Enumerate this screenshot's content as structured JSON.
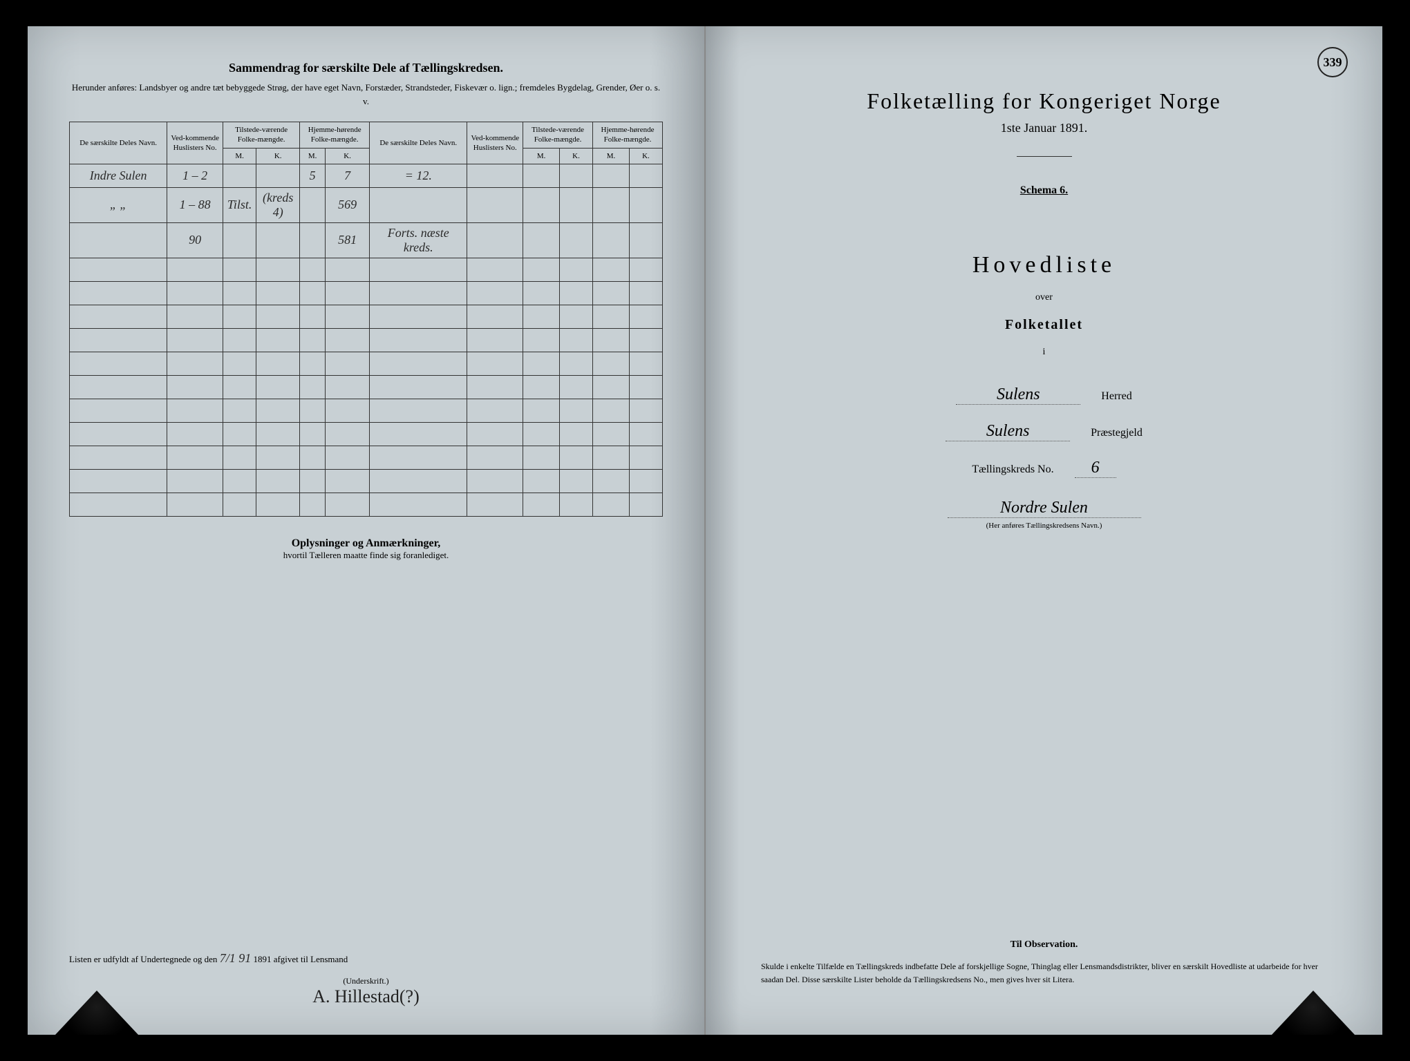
{
  "leftPage": {
    "title": "Sammendrag for særskilte Dele af Tællingskredsen.",
    "subtitle": "Herunder anføres: Landsbyer og andre tæt bebyggede Strøg, der have eget Navn, Forstæder, Strandsteder, Fiskevær o. lign.; fremdeles Bygdelag, Grender, Øer o. s. v.",
    "headers": {
      "col1": "De særskilte Deles Navn.",
      "col2": "Ved-kommende Huslisters No.",
      "col3": "Tilstede-værende Folke-mængde.",
      "col4": "Hjemme-hørende Folke-mængde.",
      "col5": "De særskilte Deles Navn.",
      "col6": "Ved-kommende Huslisters No.",
      "col7": "Tilstede-værende Folke-mængde.",
      "col8": "Hjemme-hørende Folke-mængde.",
      "mk_m": "M.",
      "mk_k": "K."
    },
    "rows": [
      {
        "name": "Indre Sulen",
        "no": "1 – 2",
        "t_m": "",
        "t_k": "",
        "h_m": "5",
        "h_k": "7",
        "name2": "= 12.",
        "no2": "",
        "t2_m": "",
        "t2_k": "",
        "h2_m": "",
        "h2_k": ""
      },
      {
        "name": "„     „",
        "no": "1 – 88",
        "t_m": "Tilst.",
        "t_k": "(kreds 4)",
        "h_m": "",
        "h_k": "569",
        "name2": "",
        "no2": "",
        "t2_m": "",
        "t2_k": "",
        "h2_m": "",
        "h2_k": ""
      },
      {
        "name": "",
        "no": "90",
        "t_m": "",
        "t_k": "",
        "h_m": "",
        "h_k": "581",
        "name2": "Forts. næste kreds.",
        "no2": "",
        "t2_m": "",
        "t2_k": "",
        "h2_m": "",
        "h2_k": ""
      }
    ],
    "notesTitle": "Oplysninger og Anmærkninger,",
    "notesSub": "hvortil Tælleren maatte finde sig foranlediget.",
    "bottomText1": "Listen er udfyldt af Undertegnede og den",
    "bottomDate": "7/1 91",
    "bottomText2": "1891 afgivet til Lensmand",
    "sigLabel": "(Underskrift.)",
    "signature": "A. Hillestad(?)"
  },
  "rightPage": {
    "pageNumber": "339",
    "mainTitle": "Folketælling for Kongeriget Norge",
    "dateLine": "1ste Januar 1891.",
    "schema": "Schema 6.",
    "hovedliste": "Hovedliste",
    "over": "over",
    "folketallet": "Folketallet",
    "i": "i",
    "herredValue": "Sulens",
    "herredLabel": "Herred",
    "prestegjeldValue": "Sulens",
    "prestegjeldLabel": "Præstegjeld",
    "kredsLabel": "Tællingskreds No.",
    "kredsNo": "6",
    "kredsName": "Nordre Sulen",
    "kredsNote": "(Her anføres Tællingskredsens Navn.)",
    "obsTitle": "Til Observation.",
    "obsText": "Skulde i enkelte Tilfælde en Tællingskreds indbefatte Dele af forskjellige Sogne, Thinglag eller Lensmandsdistrikter, bliver en særskilt Hovedliste at udarbeide for hver saadan Del. Disse særskilte Lister beholde da Tællingskredsens No., men gives hver sit Litera."
  }
}
